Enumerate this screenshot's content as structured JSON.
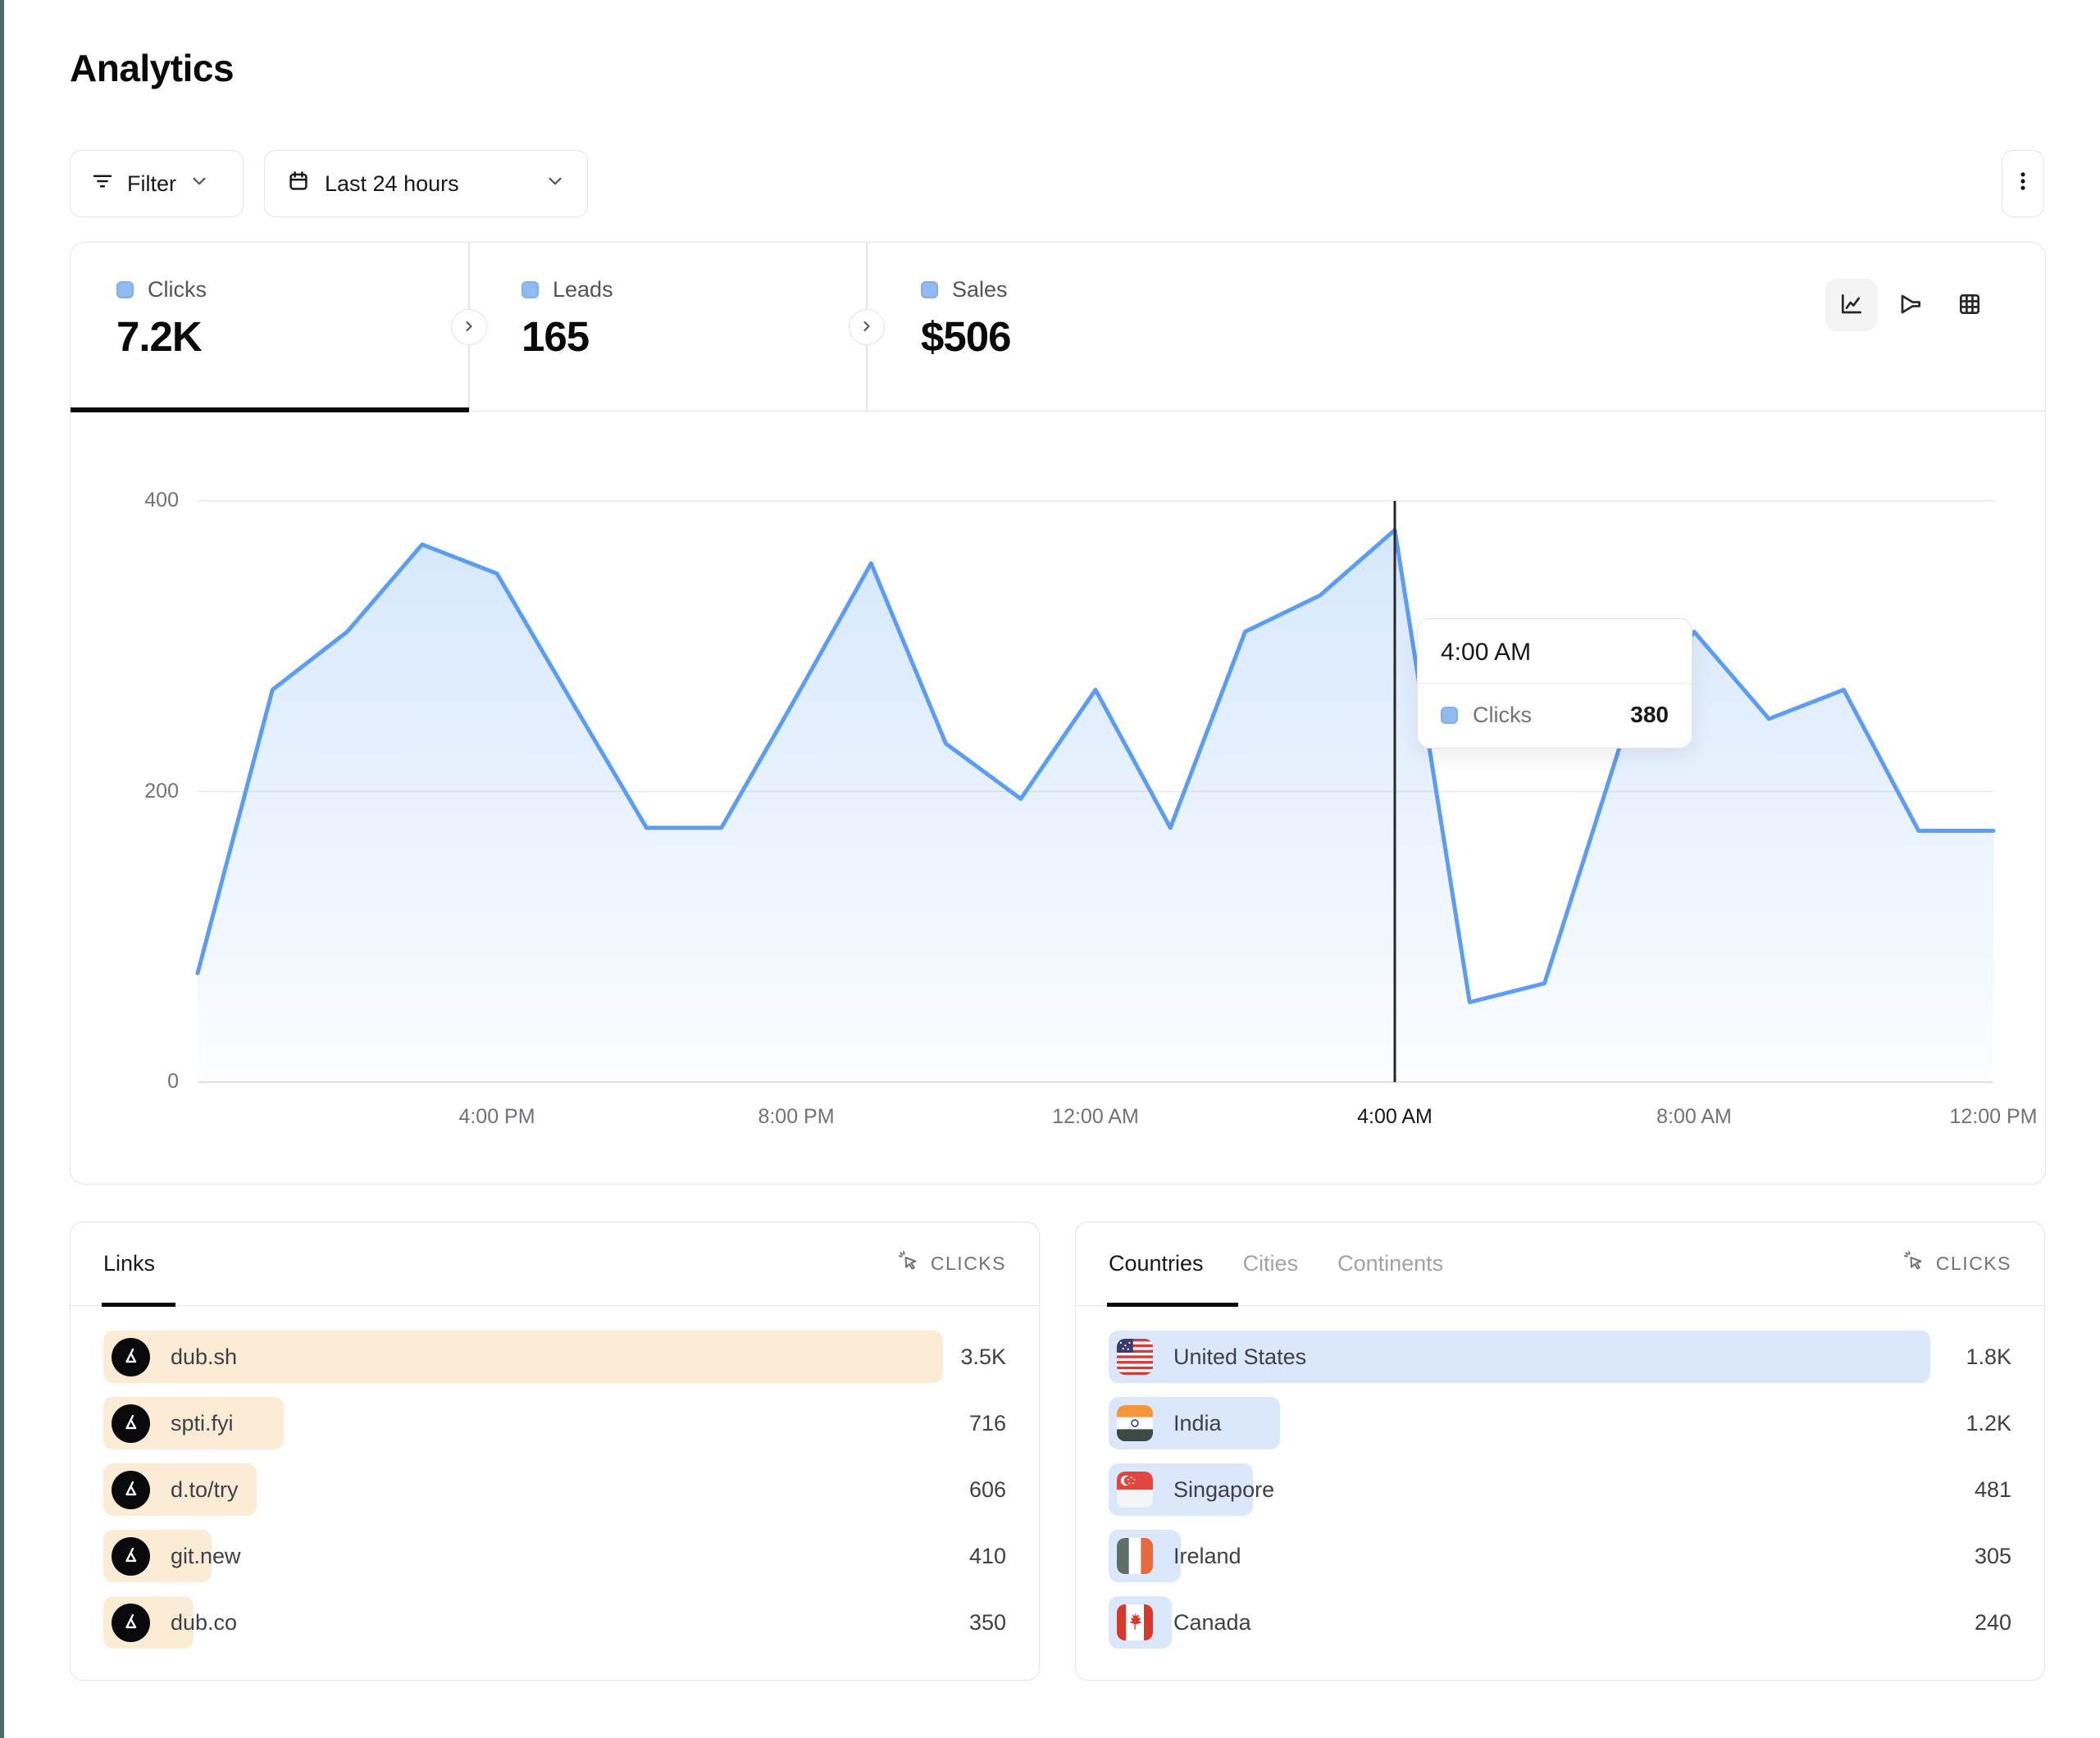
{
  "page": {
    "title": "Analytics"
  },
  "toolbar": {
    "filter_label": "Filter",
    "date_range_label": "Last 24 hours"
  },
  "metrics": {
    "tabs": [
      {
        "label": "Clicks",
        "value": "7.2K",
        "active": true
      },
      {
        "label": "Leads",
        "value": "165",
        "active": false
      },
      {
        "label": "Sales",
        "value": "$506",
        "active": false
      }
    ]
  },
  "chart_toggles": [
    {
      "name": "line-chart-view",
      "active": true
    },
    {
      "name": "funnel-chart-view",
      "active": false
    },
    {
      "name": "table-view",
      "active": false
    }
  ],
  "chart_data": {
    "type": "area",
    "title": "Clicks over last 24 hours",
    "x": [
      "12:00 PM",
      "1:00 PM",
      "2:00 PM",
      "3:00 PM",
      "4:00 PM",
      "5:00 PM",
      "6:00 PM",
      "7:00 PM",
      "8:00 PM",
      "9:00 PM",
      "10:00 PM",
      "11:00 PM",
      "12:00 AM",
      "1:00 AM",
      "2:00 AM",
      "3:00 AM",
      "4:00 AM",
      "5:00 AM",
      "6:00 AM",
      "7:00 AM",
      "8:00 AM",
      "9:00 AM",
      "10:00 AM",
      "11:00 AM",
      "12:00 PM"
    ],
    "series": [
      {
        "name": "Clicks",
        "values": [
          75,
          270,
          310,
          370,
          350,
          262,
          175,
          175,
          265,
          357,
          233,
          195,
          270,
          175,
          310,
          335,
          380,
          55,
          68,
          230,
          310,
          250,
          270,
          173,
          173
        ]
      }
    ],
    "ylim": [
      0,
      400
    ],
    "yticks": [
      400,
      200,
      0
    ],
    "x_tick_labels": [
      "4:00 PM",
      "8:00 PM",
      "12:00 AM",
      "4:00 AM",
      "8:00 AM",
      "12:00 PM"
    ],
    "x_tick_indices": [
      4,
      8,
      12,
      16,
      20,
      24
    ],
    "grid": true,
    "legend": "none",
    "highlight": {
      "x": "4:00 AM",
      "index": 16,
      "value": 380
    }
  },
  "tooltip": {
    "time": "4:00 AM",
    "series": "Clicks",
    "value": "380"
  },
  "links_panel": {
    "tab_label": "Links",
    "metric_label": "CLICKS",
    "rows": [
      {
        "name": "dub.sh",
        "value": "3.5K",
        "bar_pct": 93,
        "icon": "dub-logo"
      },
      {
        "name": "spti.fyi",
        "value": "716",
        "bar_pct": 20,
        "icon": "dub-logo"
      },
      {
        "name": "d.to/try",
        "value": "606",
        "bar_pct": 17,
        "icon": "dub-logo"
      },
      {
        "name": "git.new",
        "value": "410",
        "bar_pct": 12,
        "icon": "dub-logo"
      },
      {
        "name": "dub.co",
        "value": "350",
        "bar_pct": 10,
        "icon": "dub-logo"
      }
    ]
  },
  "countries_panel": {
    "tabs": [
      "Countries",
      "Cities",
      "Continents"
    ],
    "active_tab": "Countries",
    "metric_label": "CLICKS",
    "rows": [
      {
        "name": "United States",
        "value": "1.8K",
        "bar_pct": 91,
        "flag": "us"
      },
      {
        "name": "India",
        "value": "1.2K",
        "bar_pct": 19,
        "flag": "in"
      },
      {
        "name": "Singapore",
        "value": "481",
        "bar_pct": 16,
        "flag": "sg"
      },
      {
        "name": "Ireland",
        "value": "305",
        "bar_pct": 8,
        "flag": "ie"
      },
      {
        "name": "Canada",
        "value": "240",
        "bar_pct": 7,
        "flag": "ca"
      }
    ]
  },
  "colors": {
    "accent_line": "#5b9cf5",
    "area_fill_top": "rgba(96,165,250,0.26)",
    "area_fill_bottom": "rgba(96,165,250,0.02)",
    "legend_chip": "#90baf1",
    "links_bar": "#fcebd5",
    "countries_bar": "#dbe7fb",
    "crosshair": "#27272a",
    "gridline": "#e8e8ea",
    "edge_strip": "#4d6b67"
  }
}
